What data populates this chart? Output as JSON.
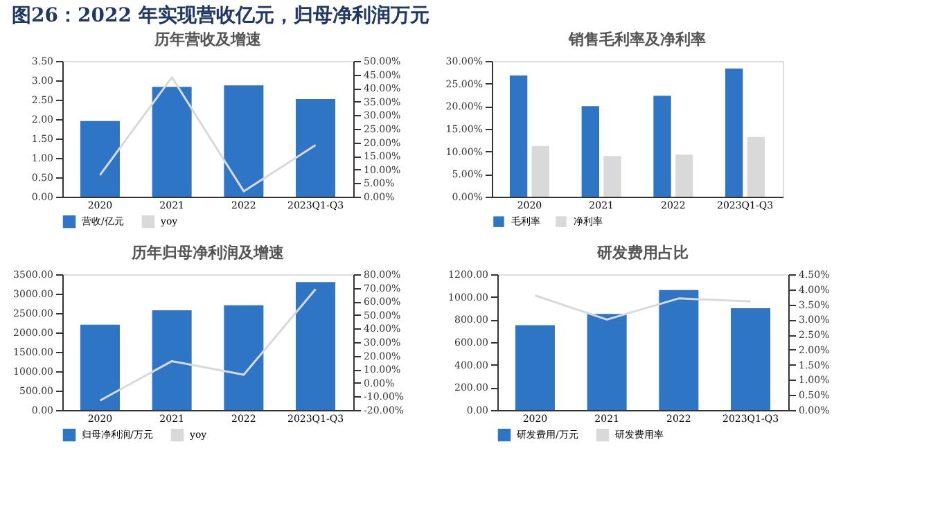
{
  "chart_data": [
    {
      "type": "bar",
      "title": "历年营收及增速",
      "annotations": [
        "图26：2022 年实现营收亿元，归母净利润万元"
      ],
      "categories": [
        "2020",
        "2021",
        "2022",
        "2023Q1-Q3"
      ],
      "series": [
        {
          "name": "营收/亿元",
          "color": "#2e75c6",
          "values": [
            1.95,
            2.83,
            2.87,
            2.52
          ]
        },
        {
          "name": "yoy",
          "type": "line",
          "axis": "y2",
          "color": "#d9d9d9",
          "values": [
            8,
            44,
            2,
            19
          ]
        }
      ],
      "ylim": [
        0,
        3.5
      ],
      "yticks": [
        {
          "value": 0,
          "label": "0.00"
        },
        {
          "value": 0.5,
          "label": "0.50"
        },
        {
          "value": 1,
          "label": "1.00"
        },
        {
          "value": 1.5,
          "label": "1.50"
        },
        {
          "value": 2,
          "label": "2.00"
        },
        {
          "value": 2.5,
          "label": "2.50"
        },
        {
          "value": 3,
          "label": "3.00"
        },
        {
          "value": 3.5,
          "label": "3.50"
        }
      ],
      "y2lim": [
        0,
        50
      ],
      "y2ticks": [
        {
          "value": 0,
          "label": "0.00%"
        },
        {
          "value": 5,
          "label": "5.00%"
        },
        {
          "value": 10,
          "label": "10.00%"
        },
        {
          "value": 15,
          "label": "15.00%"
        },
        {
          "value": 20,
          "label": "20.00%"
        },
        {
          "value": 25,
          "label": "25.00%"
        },
        {
          "value": 30,
          "label": "30.00%"
        },
        {
          "value": 35,
          "label": "35.00%"
        },
        {
          "value": 40,
          "label": "40.00%"
        },
        {
          "value": 45,
          "label": "45.00%"
        },
        {
          "value": 50,
          "label": "50.00%"
        }
      ],
      "legend": "bottom",
      "grid": false
    },
    {
      "type": "bar",
      "title": "销售毛利率及净利率",
      "categories": [
        "2020",
        "2021",
        "2022",
        "2023Q1-Q3"
      ],
      "series": [
        {
          "name": "毛利率",
          "color": "#2e75c6",
          "values": [
            26.8,
            20.0,
            22.3,
            28.3
          ]
        },
        {
          "name": "净利率",
          "color": "#d9d9d9",
          "values": [
            11.2,
            9.0,
            9.3,
            13.2
          ]
        }
      ],
      "ylim": [
        0,
        30
      ],
      "yticks": [
        {
          "value": 0,
          "label": "0.00%"
        },
        {
          "value": 5,
          "label": "5.00%"
        },
        {
          "value": 10,
          "label": "10.00%"
        },
        {
          "value": 15,
          "label": "15.00%"
        },
        {
          "value": 20,
          "label": "20.00%"
        },
        {
          "value": 25,
          "label": "25.00%"
        },
        {
          "value": 30,
          "label": "30.00%"
        }
      ],
      "legend": "bottom",
      "grid": false
    },
    {
      "type": "bar",
      "title": "历年归母净利润及增速",
      "categories": [
        "2020",
        "2021",
        "2022",
        "2023Q1-Q3"
      ],
      "series": [
        {
          "name": "归母净利润/万元",
          "color": "#2e75c6",
          "values": [
            2200,
            2570,
            2700,
            3300
          ]
        },
        {
          "name": "yoy",
          "type": "line",
          "axis": "y2",
          "color": "#d9d9d9",
          "values": [
            -13,
            16,
            6,
            69
          ]
        }
      ],
      "ylim": [
        0,
        3500
      ],
      "yticks": [
        {
          "value": 0,
          "label": "0.00"
        },
        {
          "value": 500,
          "label": "500.00"
        },
        {
          "value": 1000,
          "label": "1000.00"
        },
        {
          "value": 1500,
          "label": "1500.00"
        },
        {
          "value": 2000,
          "label": "2000.00"
        },
        {
          "value": 2500,
          "label": "2500.00"
        },
        {
          "value": 3000,
          "label": "3000.00"
        },
        {
          "value": 3500,
          "label": "3500.00"
        }
      ],
      "y2lim": [
        -20,
        80
      ],
      "y2ticks": [
        {
          "value": -20,
          "label": "-20.00%"
        },
        {
          "value": -10,
          "label": "-10.00%"
        },
        {
          "value": 0,
          "label": "0.00%"
        },
        {
          "value": 10,
          "label": "10.00%"
        },
        {
          "value": 20,
          "label": "20.00%"
        },
        {
          "value": 30,
          "label": "30.00%"
        },
        {
          "value": 40,
          "label": "40.00%"
        },
        {
          "value": 50,
          "label": "50.00%"
        },
        {
          "value": 60,
          "label": "60.00%"
        },
        {
          "value": 70,
          "label": "70.00%"
        },
        {
          "value": 80,
          "label": "80.00%"
        }
      ],
      "legend": "bottom",
      "grid": false
    },
    {
      "type": "bar",
      "title": "研发费用占比",
      "categories": [
        "2020",
        "2021",
        "2022",
        "2023Q1-Q3"
      ],
      "series": [
        {
          "name": "研发费用/万元",
          "color": "#2e75c6",
          "values": [
            750,
            850,
            1060,
            900
          ]
        },
        {
          "name": "研发费用率",
          "type": "line",
          "axis": "y2",
          "color": "#d9d9d9",
          "values": [
            3.8,
            3.0,
            3.7,
            3.6
          ]
        }
      ],
      "ylim": [
        0,
        1200
      ],
      "yticks": [
        {
          "value": 0,
          "label": "0.00"
        },
        {
          "value": 200,
          "label": "200.00"
        },
        {
          "value": 400,
          "label": "400.00"
        },
        {
          "value": 600,
          "label": "600.00"
        },
        {
          "value": 800,
          "label": "800.00"
        },
        {
          "value": 1000,
          "label": "1000.00"
        },
        {
          "value": 1200,
          "label": "1200.00"
        }
      ],
      "y2lim": [
        0,
        4.5
      ],
      "y2ticks": [
        {
          "value": 0,
          "label": "0.00%"
        },
        {
          "value": 0.5,
          "label": "0.50%"
        },
        {
          "value": 1,
          "label": "1.00%"
        },
        {
          "value": 1.5,
          "label": "1.50%"
        },
        {
          "value": 2,
          "label": "2.00%"
        },
        {
          "value": 2.5,
          "label": "2.50%"
        },
        {
          "value": 3,
          "label": "3.00%"
        },
        {
          "value": 3.5,
          "label": "3.50%"
        },
        {
          "value": 4,
          "label": "4.00%"
        },
        {
          "value": 4.5,
          "label": "4.50%"
        }
      ],
      "legend": "bottom",
      "grid": false
    }
  ]
}
